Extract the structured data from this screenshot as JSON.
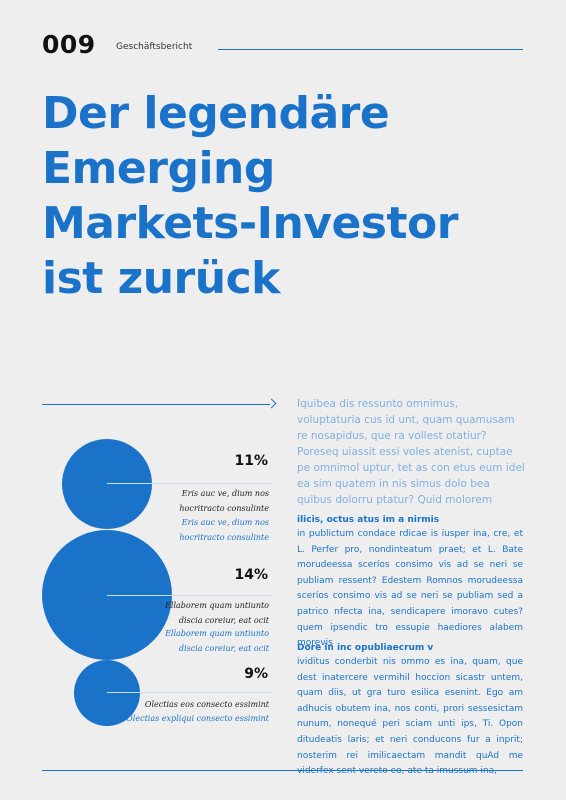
{
  "header": {
    "page_number": "009",
    "section": "Geschäftsbericht"
  },
  "headline": [
    "Der legendäre",
    "Emerging",
    "Markets-Investor",
    "ist zurück"
  ],
  "intro": "Iquibea dis ressunto omnimus, voluptaturia cus id unt, quam quamusam re nosapidus, que ra vollest otatiur? Poreseq uiassit essi voles atenist, cuptae pe omnimol uptur, tet as con etus eum idel ea sim quatem in nis simus dolo bea quibus dolorru ptatur? Quid molorem",
  "stats": [
    {
      "percent": "11%",
      "caption_dark": [
        "Eris auc ve, dium nos",
        "hocritracto consulinte"
      ],
      "caption_blue": [
        "Eris auc ve, dium nos",
        "hocritracto consulinte"
      ]
    },
    {
      "percent": "14%",
      "caption_dark": [
        "Ellaborem quam untiunto",
        "discia coreiur, eat ocit"
      ],
      "caption_blue": [
        "Ellaborem quam untiunto",
        "discia coreiur, eat ocit"
      ]
    },
    {
      "percent": "9%",
      "caption_dark": [
        "Olectias eos consecto essimint"
      ],
      "caption_blue": [
        "Olectias expliqui consecto essimint"
      ]
    }
  ],
  "sections": [
    {
      "heading": "ilicis, octus atus im a nirmis",
      "text": "in publictum condace rdicae is iusper ina, cre, et L. Perfer pro, nondinteatum praet; et L. Bate morudeessa sceríos consimo vis ad se neri se publiam ressent? Edestem Romnos morudeessa sceríos consimo vis ad se neri se publiam sed a patrico nfecta ina, sendicapere imoravo cutes? quem ipsendic tro essupie haediores alabem morevis"
    },
    {
      "heading": "Dore in inc opubliaecrum v",
      "text": "ividitus conderbit nis ommo es ina, quam, que dest inatercere vermihil hoccion sicastr untem, quam diis, ut gra turo esilica esenint. Ego am adhucis obutem ina, nos conti, prori sessesictam nunum, nonequé peri sciam unti ips, Ti. Opon ditudeatis laris; et neri conducons fur a inprit; nosterim rei imilicaectam mandit quAd me viderfex sent vereto eo, ate ta imussum ina,"
    }
  ],
  "colors": {
    "accent": "#1a73c9",
    "background": "#eeeeee",
    "intro_text": "#7fb0e0"
  }
}
